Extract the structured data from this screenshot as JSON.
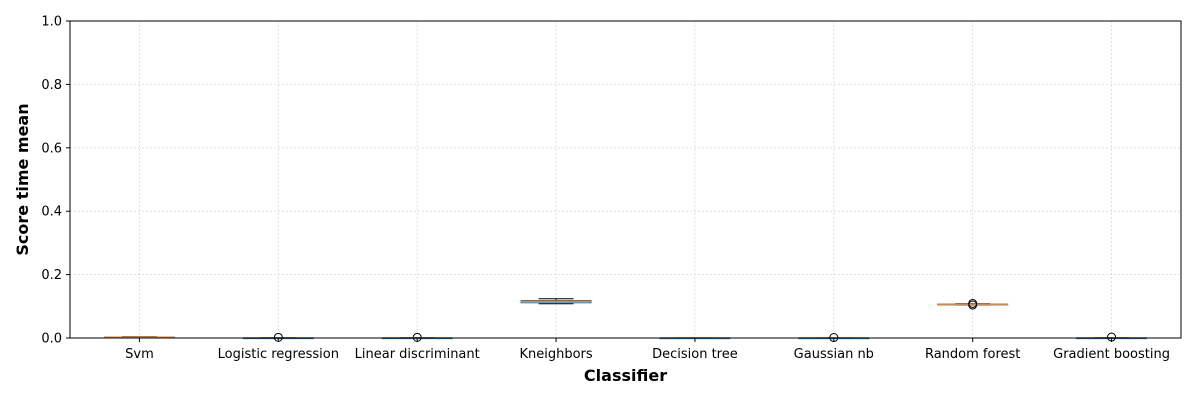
{
  "chart_data": {
    "type": "box",
    "xlabel": "Classifier",
    "ylabel": "Score time mean",
    "ylim": [
      0,
      1.0
    ],
    "yticks": [
      "0.0",
      "0.2",
      "0.4",
      "0.6",
      "0.8",
      "1.0"
    ],
    "grid": true,
    "categories": [
      "Svm",
      "Logistic regression",
      "Linear discriminant",
      "Kneighbors",
      "Decision tree",
      "Gaussian nb",
      "Random forest",
      "Gradient boosting"
    ],
    "boxes": [
      {
        "label": "Svm",
        "whisker_low": 0.001,
        "q1": 0.0015,
        "median": 0.0025,
        "q3": 0.003,
        "whisker_high": 0.004,
        "outliers": []
      },
      {
        "label": "Logistic regression",
        "whisker_low": 0.0002,
        "q1": 0.0003,
        "median": 0.0004,
        "q3": 0.0005,
        "whisker_high": 0.0006,
        "outliers": [
          0.002
        ]
      },
      {
        "label": "Linear discriminant",
        "whisker_low": 0.0002,
        "q1": 0.0003,
        "median": 0.0004,
        "q3": 0.0005,
        "whisker_high": 0.0006,
        "outliers": [
          0.002
        ]
      },
      {
        "label": "Kneighbors",
        "whisker_low": 0.108,
        "q1": 0.111,
        "median": 0.115,
        "q3": 0.118,
        "whisker_high": 0.124,
        "outliers": []
      },
      {
        "label": "Decision tree",
        "whisker_low": 0.0001,
        "q1": 0.0002,
        "median": 0.0003,
        "q3": 0.0004,
        "whisker_high": 0.0005,
        "outliers": []
      },
      {
        "label": "Gaussian nb",
        "whisker_low": 0.0001,
        "q1": 0.0002,
        "median": 0.0003,
        "q3": 0.0004,
        "whisker_high": 0.0005,
        "outliers": [
          0.0015
        ]
      },
      {
        "label": "Random forest",
        "whisker_low": 0.1045,
        "q1": 0.105,
        "median": 0.106,
        "q3": 0.107,
        "whisker_high": 0.108,
        "outliers": [
          0.104,
          0.109
        ]
      },
      {
        "label": "Gradient boosting",
        "whisker_low": 0.0002,
        "q1": 0.0003,
        "median": 0.0004,
        "q3": 0.0005,
        "whisker_high": 0.0006,
        "outliers": [
          0.003
        ]
      }
    ],
    "colors": {
      "box": "#1f77b4",
      "median": "#ff7f0e",
      "whisker": "#000000",
      "grid": "#cccccc"
    }
  }
}
